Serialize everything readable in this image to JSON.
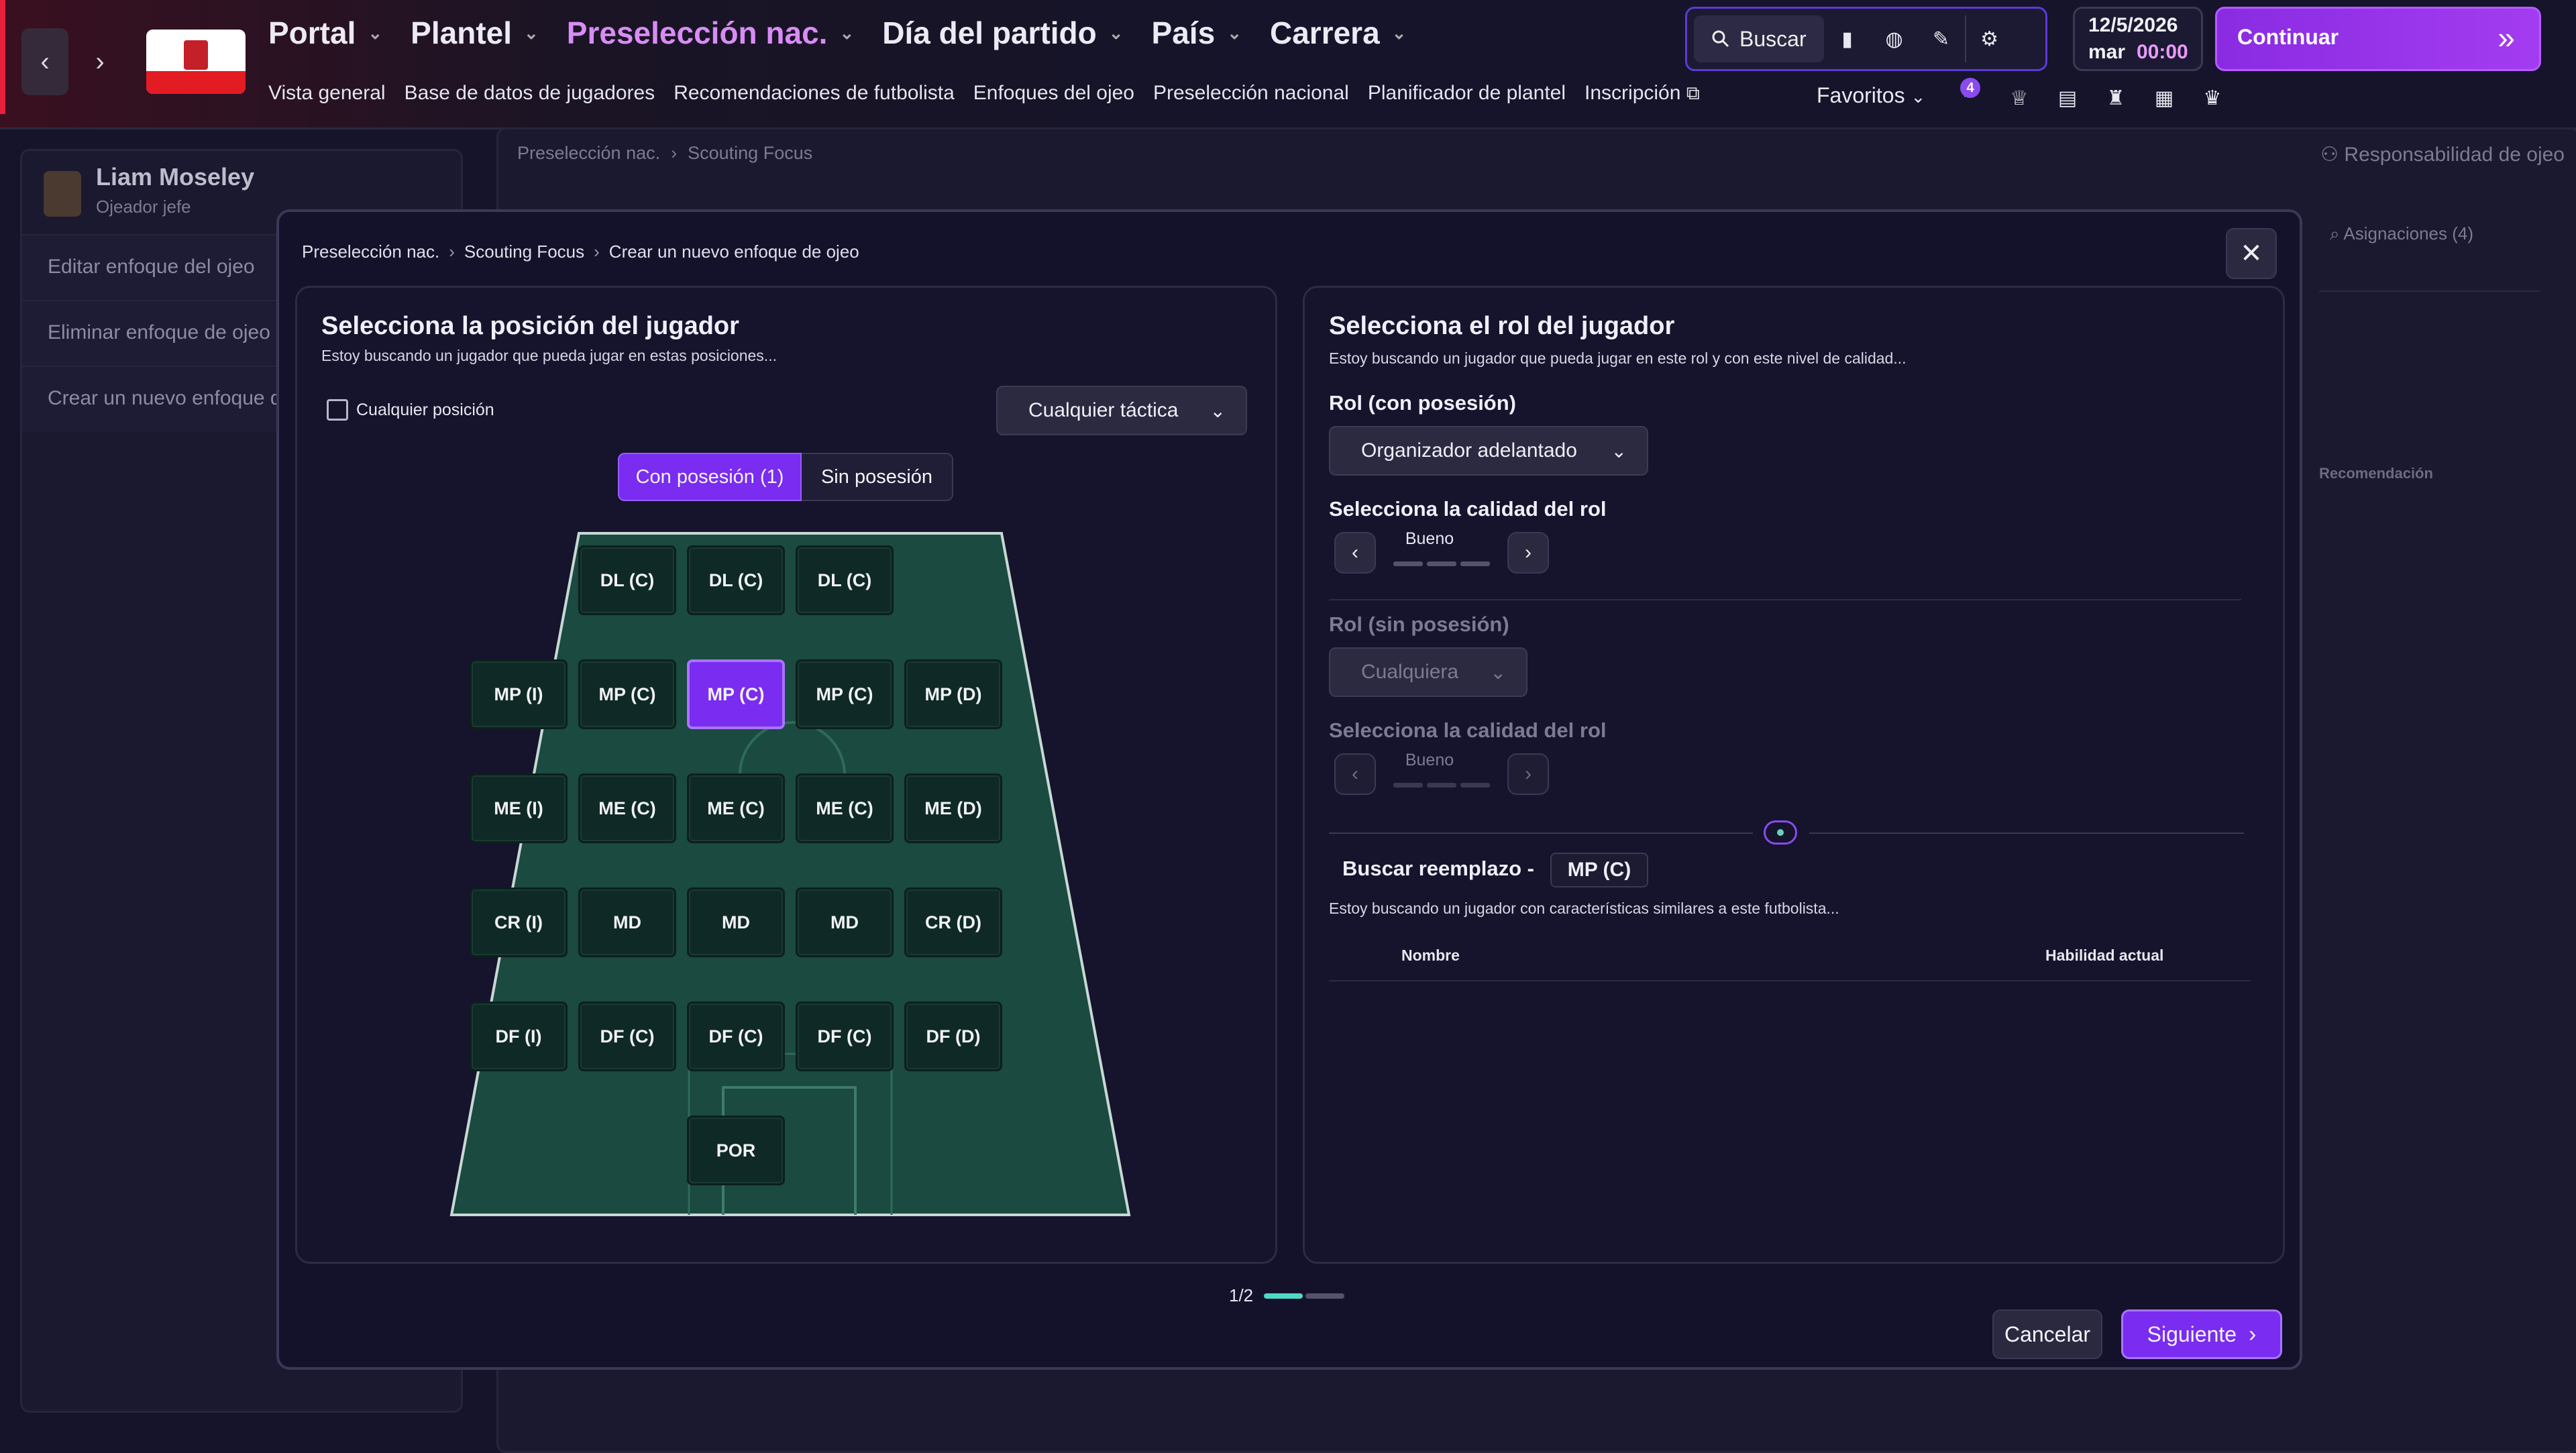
{
  "topbar": {
    "main_menu": [
      {
        "label": "Portal",
        "active": false
      },
      {
        "label": "Plantel",
        "active": false
      },
      {
        "label": "Preselección nac.",
        "active": true
      },
      {
        "label": "Día del partido",
        "active": false
      },
      {
        "label": "País",
        "active": false
      },
      {
        "label": "Carrera",
        "active": false
      }
    ],
    "sub_menu": [
      "Vista general",
      "Base de datos de jugadores",
      "Recomendaciones de futbolista",
      "Enfoques del ojeo",
      "Preselección nacional",
      "Planificador de plantel",
      "Inscripción"
    ],
    "search_label": "Buscar",
    "date": "12/5/2026",
    "weekday": "mar",
    "time": "00:00",
    "continue_label": "Continuar",
    "favorites_label": "Favoritos",
    "notification_count": "4",
    "accent_color": "#8a2be2"
  },
  "sidebar": {
    "user_name": "Liam Moseley",
    "user_role": "Ojeador jefe",
    "actions": [
      "Editar enfoque del ojeo",
      "Eliminar enfoque de ojeo",
      "Crear un nuevo enfoque d"
    ]
  },
  "background": {
    "breadcrumb": [
      "Preselección nac.",
      "Scouting Focus"
    ],
    "responsibility_label": "Responsabilidad de ojeo",
    "assignments_label": "Asignaciones (4)",
    "recommendation_col": "Recomendación"
  },
  "modal": {
    "breadcrumb": [
      "Preselección nac.",
      "Scouting Focus",
      "Crear un nuevo enfoque de ojeo"
    ],
    "left": {
      "title": "Selecciona la posición del jugador",
      "subtitle": "Estoy buscando un jugador que pueda jugar en estas posiciones...",
      "any_position_label": "Cualquier posición",
      "any_position_checked": false,
      "tactic_dropdown": "Cualquier táctica",
      "tabs": [
        {
          "label": "Con posesión (1)",
          "active": true
        },
        {
          "label": "Sin posesión",
          "active": false
        }
      ],
      "pitch_rows": [
        [
          "DL (C)",
          "DL (C)",
          "DL (C)"
        ],
        [
          "MP (I)",
          "MP (C)",
          "MP (C)",
          "MP (C)",
          "MP (D)"
        ],
        [
          "ME (I)",
          "ME (C)",
          "ME (C)",
          "ME (C)",
          "ME (D)"
        ],
        [
          "CR (I)",
          "MD",
          "MD",
          "MD",
          "CR (D)"
        ],
        [
          "DF (I)",
          "DF (C)",
          "DF (C)",
          "DF (C)",
          "DF (D)"
        ],
        [
          "POR"
        ]
      ],
      "selected_position": "MP (C)",
      "pitch_color": "#1a4a40"
    },
    "right": {
      "title": "Selecciona el rol del jugador",
      "subtitle": "Estoy buscando un jugador que pueda jugar en este rol y con este nivel de calidad...",
      "role_in_possession_label": "Rol (con posesión)",
      "role_in_possession_value": "Organizador adelantado",
      "quality_label": "Selecciona la calidad del rol",
      "quality_value": "Bueno",
      "role_out_possession_label": "Rol (sin posesión)",
      "role_out_possession_value": "Cualquiera",
      "quality_label_2": "Selecciona la calidad del rol",
      "quality_value_2": "Bueno",
      "replacement_label": "Buscar reemplazo -",
      "replacement_position": "MP (C)",
      "replacement_subtitle": "Estoy buscando un jugador con características similares a este futbolista...",
      "col_name": "Nombre",
      "col_ability": "Habilidad actual"
    },
    "page_indicator": "1/2",
    "cancel_label": "Cancelar",
    "next_label": "Siguiente"
  }
}
